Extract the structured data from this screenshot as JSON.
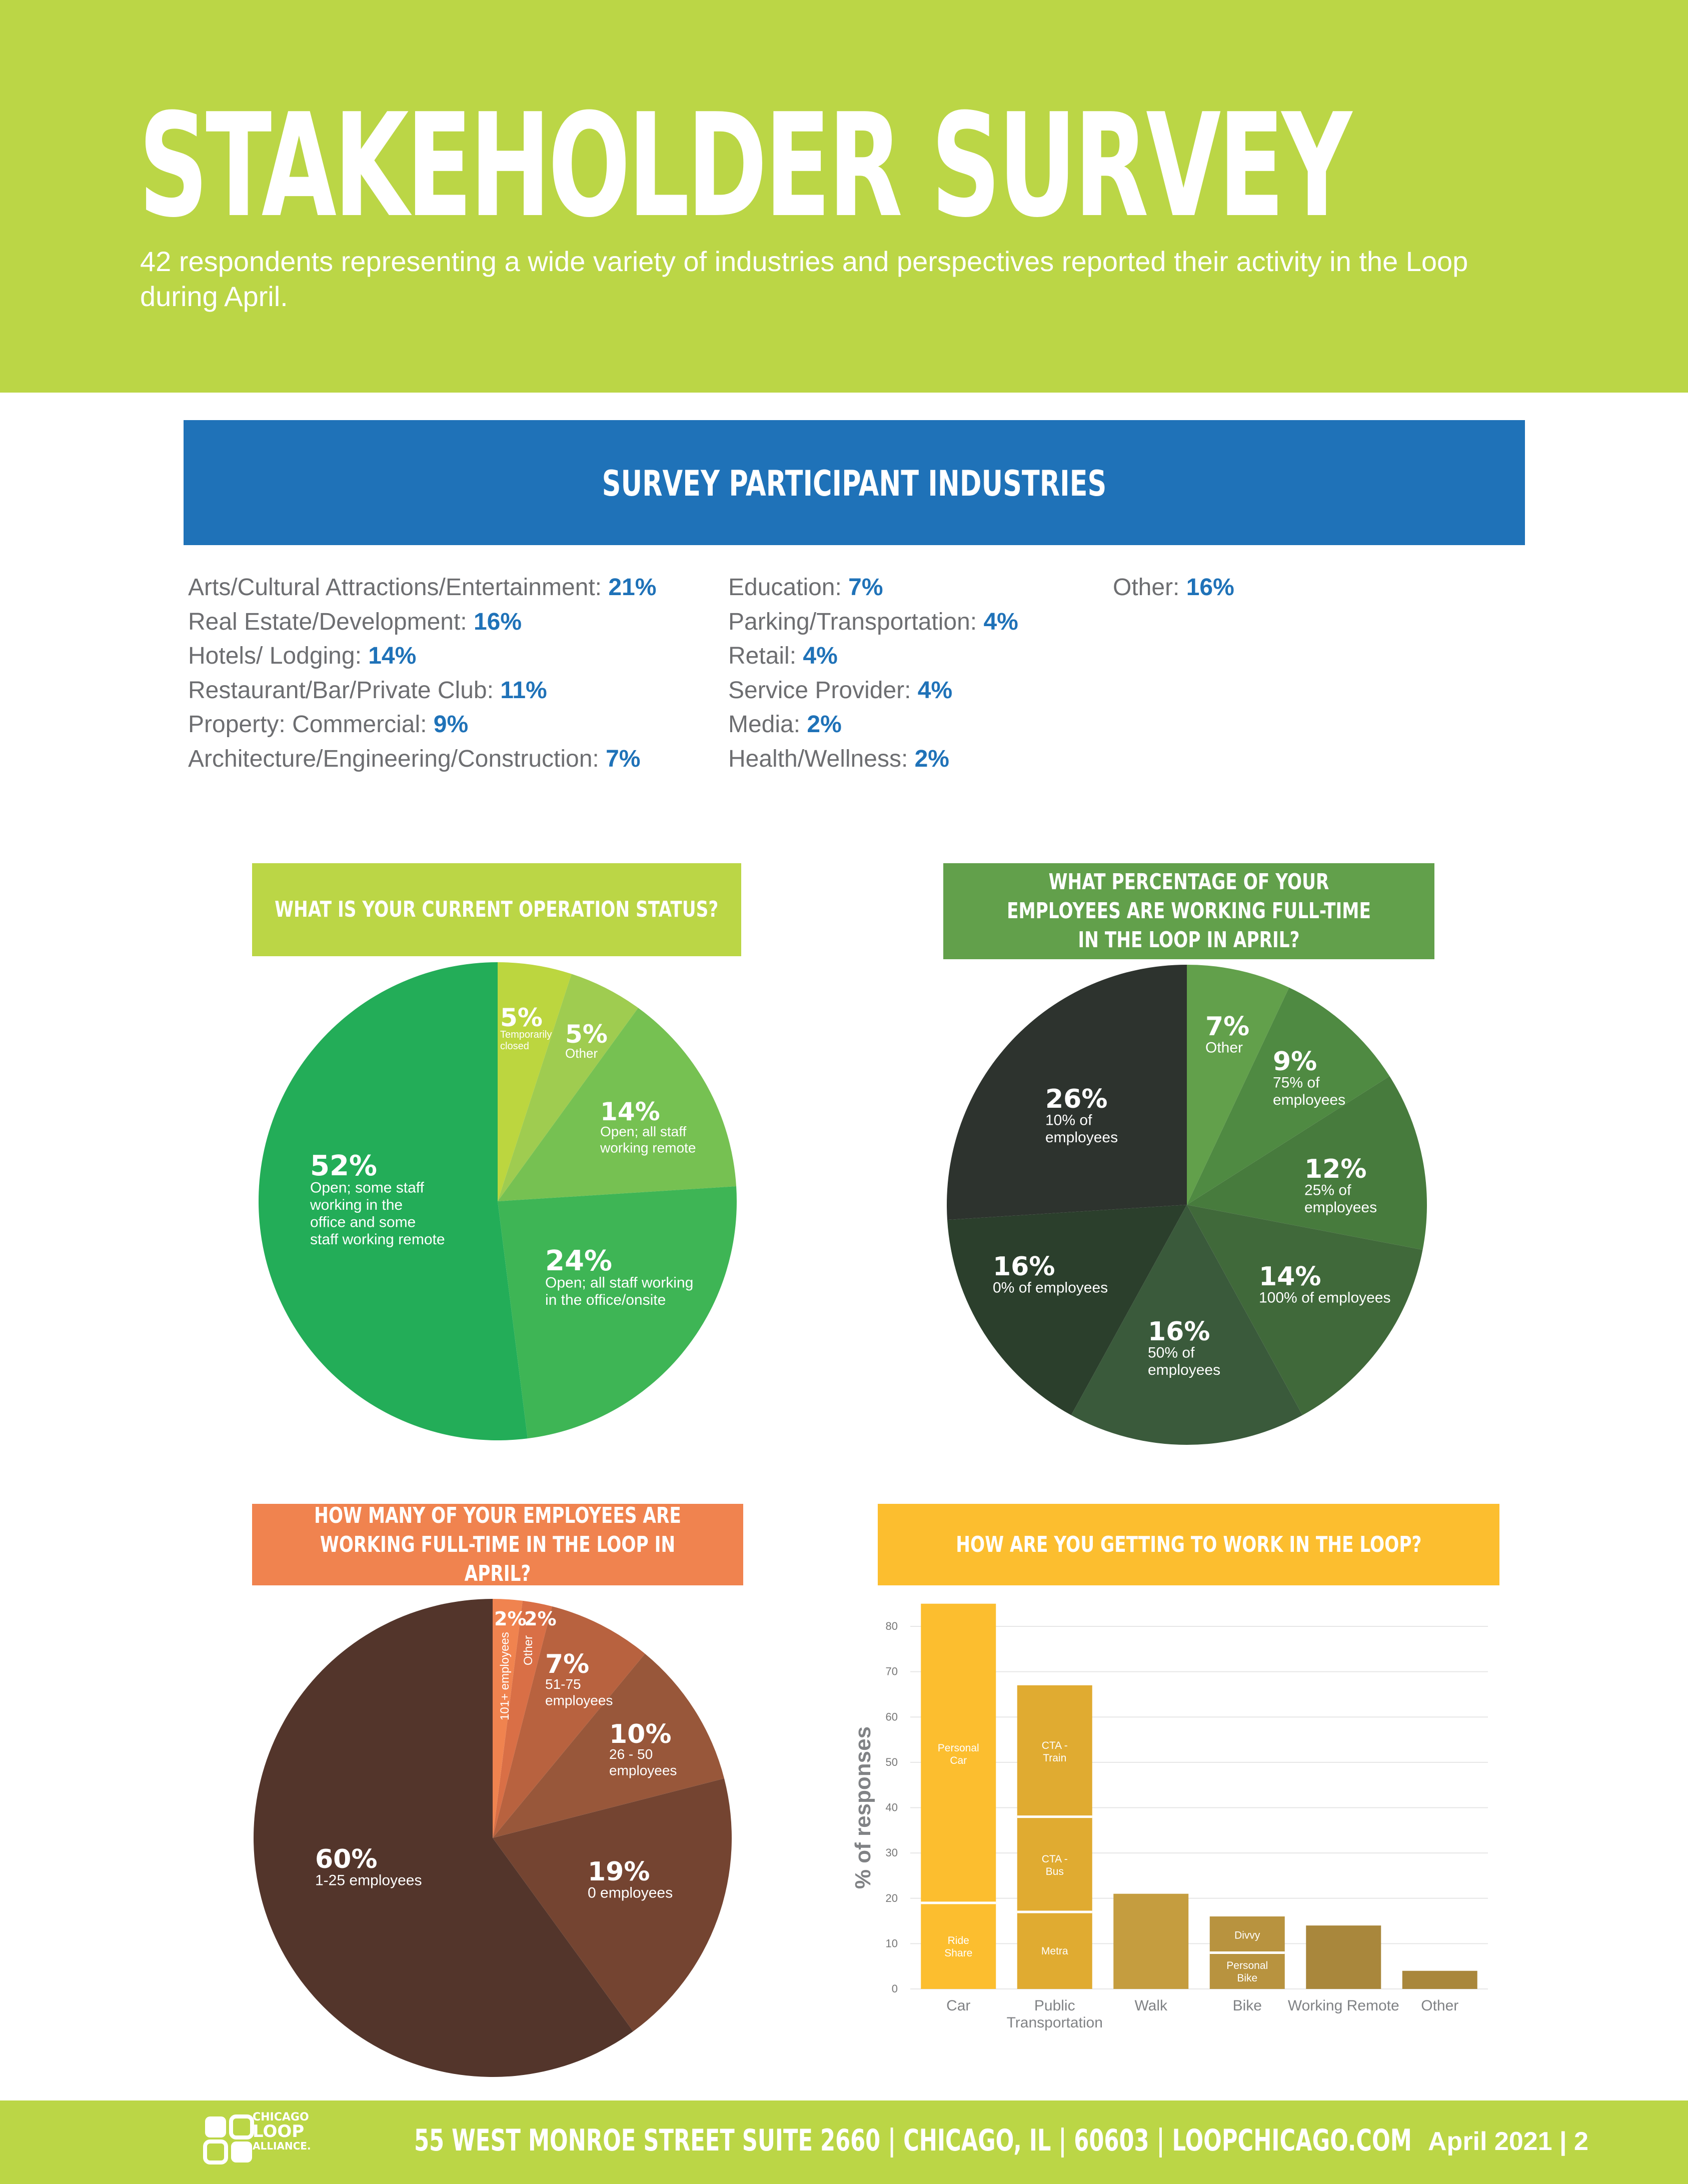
{
  "header": {
    "title": "STAKEHOLDER SURVEY",
    "subtitle": "42 respondents representing a wide variety of industries and perspectives reported their activity in the Loop during April."
  },
  "industries": {
    "title": "SURVEY PARTICIPANT INDUSTRIES",
    "col1": [
      {
        "label": "Arts/Cultural Attractions/Entertainment:",
        "pct": "21%"
      },
      {
        "label": "Real Estate/Development:",
        "pct": "16%"
      },
      {
        "label": "Hotels/ Lodging:",
        "pct": "14%"
      },
      {
        "label": "Restaurant/Bar/Private Club:",
        "pct": "11%"
      },
      {
        "label": "Property: Commercial:",
        "pct": "9%"
      },
      {
        "label": "Architecture/Engineering/Construction:",
        "pct": "7%"
      }
    ],
    "col2": [
      {
        "label": "Education:",
        "pct": "7%"
      },
      {
        "label": "Parking/Transportation:",
        "pct": "4%"
      },
      {
        "label": "Retail:",
        "pct": "4%"
      },
      {
        "label": "Service Provider:",
        "pct": "4%"
      },
      {
        "label": "Media:",
        "pct": "2%"
      },
      {
        "label": "Health/Wellness:",
        "pct": "2%"
      }
    ],
    "col3": [
      {
        "label": "Other:",
        "pct": "16%"
      }
    ],
    "colors": {
      "label": "#6d6e71",
      "pct": "#1f72b8",
      "banner": "#1f72b8"
    }
  },
  "chart_data": [
    {
      "type": "pie",
      "title": "WHAT IS YOUR CURRENT OPERATION STATUS?",
      "banner_color": "#bbd646",
      "slices": [
        {
          "value": 5,
          "pct_label": "5%",
          "label": "Temporarily closed",
          "color": "#bcd63f"
        },
        {
          "value": 5,
          "pct_label": "5%",
          "label": "Other",
          "color": "#9fcc50"
        },
        {
          "value": 14,
          "pct_label": "14%",
          "label": "Open; all staff working remote",
          "color": "#76c152"
        },
        {
          "value": 24,
          "pct_label": "24%",
          "label": "Open; all staff working in the office/onsite",
          "color": "#3eb555"
        },
        {
          "value": 52,
          "pct_label": "52%",
          "label": "Open; some staff working in the office and some staff working remote",
          "color": "#23ad58"
        }
      ]
    },
    {
      "type": "pie",
      "title": "WHAT PERCENTAGE OF YOUR EMPLOYEES ARE WORKING FULL-TIME IN THE LOOP IN APRIL?",
      "banner_color": "#62a04b",
      "slices": [
        {
          "value": 7,
          "pct_label": "7%",
          "label": "Other",
          "color": "#62a04b"
        },
        {
          "value": 9,
          "pct_label": "9%",
          "label": "75% of employees",
          "color": "#4f8a42"
        },
        {
          "value": 12,
          "pct_label": "12%",
          "label": "25% of employees",
          "color": "#477b3d"
        },
        {
          "value": 14,
          "pct_label": "14%",
          "label": "100% of employees",
          "color": "#40693a"
        },
        {
          "value": 16,
          "pct_label": "16%",
          "label": "50% of employees",
          "color": "#3a5a3b"
        },
        {
          "value": 16,
          "pct_label": "16%",
          "label": "0% of employees",
          "color": "#2b3f2c"
        },
        {
          "value": 26,
          "pct_label": "26%",
          "label": "10% of employees",
          "color": "#2d332e"
        }
      ]
    },
    {
      "type": "pie",
      "title": "HOW MANY OF YOUR EMPLOYEES ARE WORKING FULL-TIME IN THE LOOP IN APRIL?",
      "banner_color": "#f0834f",
      "slices": [
        {
          "value": 2,
          "pct_label": "2%",
          "label": "101+ employees",
          "color": "#f0834f"
        },
        {
          "value": 2,
          "pct_label": "2%",
          "label": "Other",
          "color": "#d96f46"
        },
        {
          "value": 7,
          "pct_label": "7%",
          "label": "51-75 employees",
          "color": "#b8623f"
        },
        {
          "value": 10,
          "pct_label": "10%",
          "label": "26 - 50 employees",
          "color": "#98573a"
        },
        {
          "value": 19,
          "pct_label": "19%",
          "label": "0 employees",
          "color": "#744431"
        },
        {
          "value": 60,
          "pct_label": "60%",
          "label": "1-25 employees",
          "color": "#53352b"
        }
      ]
    },
    {
      "type": "bar",
      "title": "HOW ARE YOU GETTING TO WORK IN THE LOOP?",
      "banner_color": "#fcbe2f",
      "ylabel": "% of responses",
      "ylim": [
        0,
        80
      ],
      "yticks": [
        "0",
        "10",
        "20",
        "30",
        "40",
        "50",
        "60",
        "70",
        "80"
      ],
      "categories": [
        "Car",
        "Public Transportation",
        "Walk",
        "Bike",
        "Working Remote",
        "Other"
      ],
      "stacks": [
        [
          {
            "label": "Ride Share",
            "value": 19,
            "color": "#fcbe2f"
          },
          {
            "label": "Personal Car",
            "value": 66,
            "color": "#fcbe2f"
          }
        ],
        [
          {
            "label": "Metra",
            "value": 17,
            "color": "#e0ab31"
          },
          {
            "label": "CTA - Bus",
            "value": 21,
            "color": "#e0ab31"
          },
          {
            "label": "CTA - Train",
            "value": 29,
            "color": "#e0ab31"
          }
        ],
        [
          {
            "label": "",
            "value": 21,
            "color": "#c59d3f"
          }
        ],
        [
          {
            "label": "Personal Bike",
            "value": 8,
            "color": "#b8933f"
          },
          {
            "label": "Divvy",
            "value": 8,
            "color": "#b8933f"
          }
        ],
        [
          {
            "label": "",
            "value": 14,
            "color": "#a9873c"
          }
        ],
        [
          {
            "label": "",
            "value": 4,
            "color": "#a9873c"
          }
        ]
      ]
    }
  ],
  "footer": {
    "logo_lines": [
      "CHICAGO",
      "LOOP",
      "ALLIANCE."
    ],
    "address": "55 WEST MONROE STREET SUITE 2660 | CHICAGO, IL | 60603 | LOOPCHICAGO.COM",
    "date": "April 2021 | 2"
  }
}
